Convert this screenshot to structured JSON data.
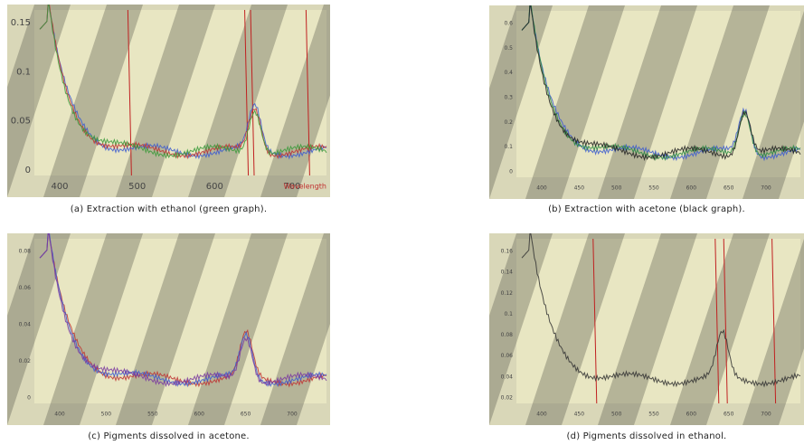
{
  "panels": [
    {
      "caption": "(a) Extraction with ethanol (green graph).",
      "y_labels": [
        "0.15",
        "0.1",
        "0.05",
        "0"
      ],
      "x_labels": [
        "400",
        "500",
        "600",
        "700"
      ],
      "x_axis_label": "Wavelength"
    },
    {
      "caption": "(b) Extraction with acetone (black graph).",
      "y_labels": [
        "0.6",
        "0.5",
        "0.4",
        "0.3",
        "0.2",
        "0.1",
        "0"
      ],
      "x_labels": [
        "400",
        "450",
        "500",
        "550",
        "600",
        "650",
        "700"
      ]
    },
    {
      "caption": "(c) Pigments dissolved in acetone.",
      "y_labels": [
        "0.08",
        "0.06",
        "0.04",
        "0.02",
        "0"
      ],
      "x_labels": [
        "400",
        "500",
        "550",
        "600",
        "650",
        "700"
      ]
    },
    {
      "caption": "(d) Pigments dissolved in ethanol.",
      "y_labels": [
        "0.16",
        "0.14",
        "0.12",
        "0.1",
        "0.08",
        "0.06",
        "0.04",
        "0.02"
      ],
      "x_labels": [
        "400",
        "450",
        "500",
        "550",
        "600",
        "650",
        "700"
      ]
    }
  ]
}
